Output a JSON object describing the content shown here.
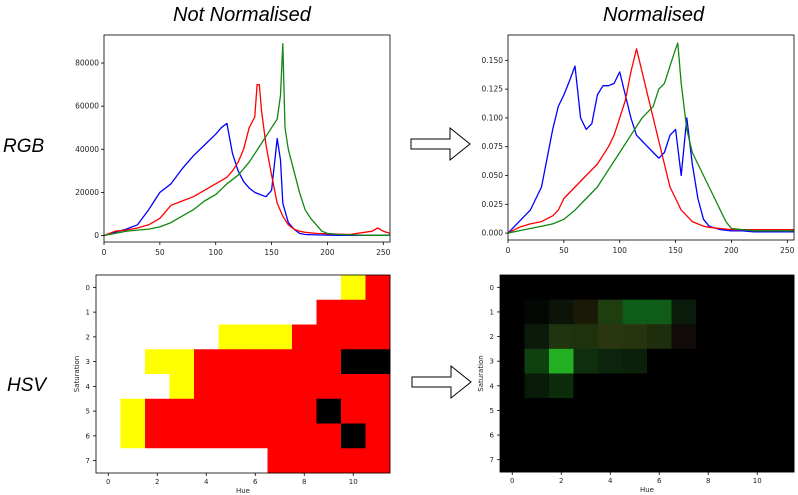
{
  "headings": {
    "left": "Not Normalised",
    "right": "Normalised"
  },
  "row_labels": {
    "top": "RGB",
    "bottom": "HSV"
  },
  "colors": {
    "blue": "#0000ff",
    "red": "#ff0000",
    "green": "#118811",
    "yellow": "#ffff00",
    "black": "#000000"
  },
  "chart_data": [
    {
      "type": "line",
      "id": "rgb-raw",
      "x_ticks": [
        0,
        50,
        100,
        150,
        200,
        250
      ],
      "y_ticks": [
        0,
        20000,
        40000,
        60000,
        80000
      ],
      "xlim": [
        0,
        256
      ],
      "ylim": [
        -3000,
        93000
      ],
      "series": [
        {
          "color": "blue",
          "x": [
            0,
            10,
            20,
            30,
            40,
            45,
            50,
            60,
            70,
            80,
            90,
            100,
            105,
            110,
            115,
            120,
            125,
            130,
            135,
            140,
            145,
            150,
            155,
            158,
            160,
            165,
            170,
            175,
            180,
            190,
            200,
            210,
            220,
            230,
            240,
            250,
            256
          ],
          "y": [
            0,
            1500,
            3000,
            5000,
            12000,
            16000,
            20000,
            24000,
            31000,
            37000,
            42000,
            47000,
            50000,
            52000,
            38000,
            30000,
            25000,
            22000,
            20000,
            19000,
            18000,
            21000,
            45000,
            35000,
            15000,
            6000,
            3000,
            1000,
            500,
            300,
            200,
            100,
            100,
            100,
            100,
            100,
            100
          ]
        },
        {
          "color": "red",
          "x": [
            0,
            10,
            20,
            30,
            40,
            50,
            60,
            70,
            80,
            90,
            100,
            110,
            115,
            120,
            125,
            130,
            135,
            137,
            139,
            141,
            145,
            150,
            155,
            160,
            165,
            170,
            175,
            180,
            190,
            200,
            220,
            240,
            245,
            250,
            256
          ],
          "y": [
            0,
            2000,
            2500,
            3500,
            5000,
            8000,
            14000,
            16000,
            18000,
            21000,
            24000,
            27000,
            30000,
            34000,
            40000,
            50000,
            55000,
            70000,
            70000,
            58000,
            42000,
            28000,
            15000,
            9000,
            5000,
            3000,
            2000,
            1500,
            1000,
            800,
            500,
            2000,
            3500,
            2000,
            1000
          ]
        },
        {
          "color": "green",
          "x": [
            0,
            10,
            20,
            30,
            40,
            50,
            60,
            70,
            80,
            90,
            100,
            110,
            120,
            130,
            140,
            145,
            150,
            155,
            158,
            160,
            162,
            165,
            170,
            175,
            180,
            185,
            190,
            195,
            200,
            210,
            220,
            230,
            240,
            250,
            256
          ],
          "y": [
            0,
            1000,
            2000,
            2500,
            3000,
            4000,
            6000,
            9000,
            12000,
            16000,
            19000,
            24000,
            28000,
            34000,
            42000,
            46000,
            50000,
            54000,
            65000,
            89000,
            50000,
            40000,
            30000,
            20000,
            12000,
            8000,
            5000,
            2000,
            1000,
            500,
            300,
            200,
            100,
            100,
            100
          ]
        }
      ]
    },
    {
      "type": "line",
      "id": "rgb-normalised",
      "x_ticks": [
        0,
        50,
        100,
        150,
        200,
        250
      ],
      "y_ticks": [
        0.0,
        0.025,
        0.05,
        0.075,
        0.1,
        0.125,
        0.15
      ],
      "y_tick_labels": [
        "0.000",
        "0.025",
        "0.050",
        "0.075",
        "0.100",
        "0.125",
        "0.150"
      ],
      "xlim": [
        0,
        256
      ],
      "ylim": [
        -0.006,
        0.172
      ],
      "series": [
        {
          "color": "blue",
          "x": [
            0,
            10,
            20,
            30,
            35,
            40,
            45,
            50,
            55,
            60,
            65,
            70,
            75,
            80,
            85,
            90,
            95,
            100,
            105,
            110,
            115,
            120,
            125,
            130,
            135,
            140,
            145,
            150,
            155,
            160,
            165,
            170,
            175,
            180,
            190,
            200,
            210,
            220,
            230,
            240,
            256
          ],
          "y": [
            0.0,
            0.01,
            0.02,
            0.04,
            0.065,
            0.09,
            0.11,
            0.12,
            0.132,
            0.145,
            0.1,
            0.09,
            0.095,
            0.12,
            0.128,
            0.128,
            0.13,
            0.14,
            0.12,
            0.1,
            0.085,
            0.08,
            0.075,
            0.07,
            0.065,
            0.07,
            0.085,
            0.09,
            0.05,
            0.1,
            0.06,
            0.03,
            0.012,
            0.006,
            0.003,
            0.002,
            0.002,
            0.001,
            0.001,
            0.001,
            0.001
          ]
        },
        {
          "color": "red",
          "x": [
            0,
            10,
            20,
            30,
            40,
            45,
            50,
            60,
            70,
            80,
            90,
            95,
            100,
            105,
            110,
            115,
            120,
            125,
            130,
            135,
            140,
            145,
            150,
            155,
            160,
            165,
            170,
            175,
            180,
            190,
            200,
            220,
            240,
            256
          ],
          "y": [
            0.0,
            0.005,
            0.008,
            0.01,
            0.015,
            0.02,
            0.03,
            0.04,
            0.05,
            0.06,
            0.075,
            0.085,
            0.1,
            0.115,
            0.14,
            0.16,
            0.14,
            0.12,
            0.1,
            0.08,
            0.06,
            0.04,
            0.03,
            0.02,
            0.015,
            0.01,
            0.008,
            0.006,
            0.005,
            0.004,
            0.003,
            0.003,
            0.003,
            0.003
          ]
        },
        {
          "color": "green",
          "x": [
            0,
            10,
            20,
            30,
            40,
            50,
            60,
            70,
            80,
            90,
            100,
            110,
            120,
            130,
            135,
            140,
            145,
            150,
            152,
            155,
            160,
            165,
            170,
            175,
            180,
            185,
            190,
            195,
            200,
            210,
            220,
            240,
            256
          ],
          "y": [
            0.0,
            0.002,
            0.004,
            0.006,
            0.008,
            0.012,
            0.02,
            0.03,
            0.04,
            0.055,
            0.07,
            0.085,
            0.1,
            0.11,
            0.125,
            0.13,
            0.145,
            0.16,
            0.165,
            0.13,
            0.09,
            0.07,
            0.06,
            0.05,
            0.04,
            0.03,
            0.02,
            0.01,
            0.004,
            0.003,
            0.002,
            0.002,
            0.002
          ]
        }
      ]
    },
    {
      "type": "heatmap",
      "id": "hsv-raw",
      "xlabel": "Hue",
      "ylabel": "Saturation",
      "x_ticks": [
        0,
        2,
        4,
        6,
        8,
        10
      ],
      "y_ticks": [
        0,
        1,
        2,
        3,
        4,
        5,
        6,
        7
      ],
      "palette": {
        "0": "#ffffff",
        "1": "#ffff00",
        "2": "#ff0000",
        "3": "#000000"
      },
      "cells": [
        [
          0,
          0,
          0,
          0,
          0,
          0,
          0,
          0,
          0,
          0,
          1,
          2
        ],
        [
          0,
          0,
          0,
          0,
          0,
          0,
          0,
          0,
          0,
          2,
          2,
          2
        ],
        [
          0,
          0,
          0,
          0,
          0,
          1,
          1,
          1,
          2,
          2,
          2,
          2
        ],
        [
          0,
          0,
          1,
          1,
          2,
          2,
          2,
          2,
          2,
          2,
          3,
          3
        ],
        [
          0,
          0,
          0,
          1,
          2,
          2,
          2,
          2,
          2,
          2,
          2,
          2
        ],
        [
          0,
          1,
          2,
          2,
          2,
          2,
          2,
          2,
          2,
          3,
          2,
          2
        ],
        [
          0,
          1,
          2,
          2,
          2,
          2,
          2,
          2,
          2,
          2,
          3,
          2
        ],
        [
          0,
          0,
          0,
          0,
          0,
          0,
          0,
          2,
          2,
          2,
          2,
          2
        ]
      ]
    },
    {
      "type": "heatmap",
      "id": "hsv-normalised",
      "xlabel": "Hue",
      "ylabel": "Saturation",
      "x_ticks": [
        0,
        2,
        4,
        6,
        8,
        10
      ],
      "y_ticks": [
        0,
        1,
        2,
        3,
        4,
        5,
        6,
        7
      ],
      "cells": [
        [
          "#000",
          "#000",
          "#000",
          "#000",
          "#000",
          "#000",
          "#000",
          "#000",
          "#000",
          "#000",
          "#000",
          "#000"
        ],
        [
          "#000",
          "#040804",
          "#0c140a",
          "#1a1a06",
          "#1f3e10",
          "#0e5c18",
          "#0e5c18",
          "#0c1c0c",
          "#000",
          "#000",
          "#000",
          "#000"
        ],
        [
          "#000",
          "#0c1a0c",
          "#1f3510",
          "#1e320e",
          "#2a3610",
          "#283410",
          "#1e2e0c",
          "#100a08",
          "#000",
          "#000",
          "#000",
          "#000"
        ],
        [
          "#000",
          "#0e4010",
          "#22b022",
          "#0e2e0c",
          "#0c240c",
          "#0a200a",
          "#000",
          "#000",
          "#000",
          "#000",
          "#000",
          "#000"
        ],
        [
          "#000",
          "#081a08",
          "#0c2c0c",
          "#000",
          "#000",
          "#000",
          "#000",
          "#000",
          "#000",
          "#000",
          "#000",
          "#000"
        ],
        [
          "#000",
          "#000",
          "#000",
          "#000",
          "#000",
          "#000",
          "#000",
          "#000",
          "#000",
          "#000",
          "#000",
          "#000"
        ],
        [
          "#000",
          "#000",
          "#000",
          "#000",
          "#000",
          "#000",
          "#000",
          "#000",
          "#000",
          "#000",
          "#000",
          "#000"
        ],
        [
          "#000",
          "#000",
          "#000",
          "#000",
          "#000",
          "#000",
          "#000",
          "#000",
          "#000",
          "#000",
          "#000",
          "#000"
        ]
      ]
    }
  ]
}
